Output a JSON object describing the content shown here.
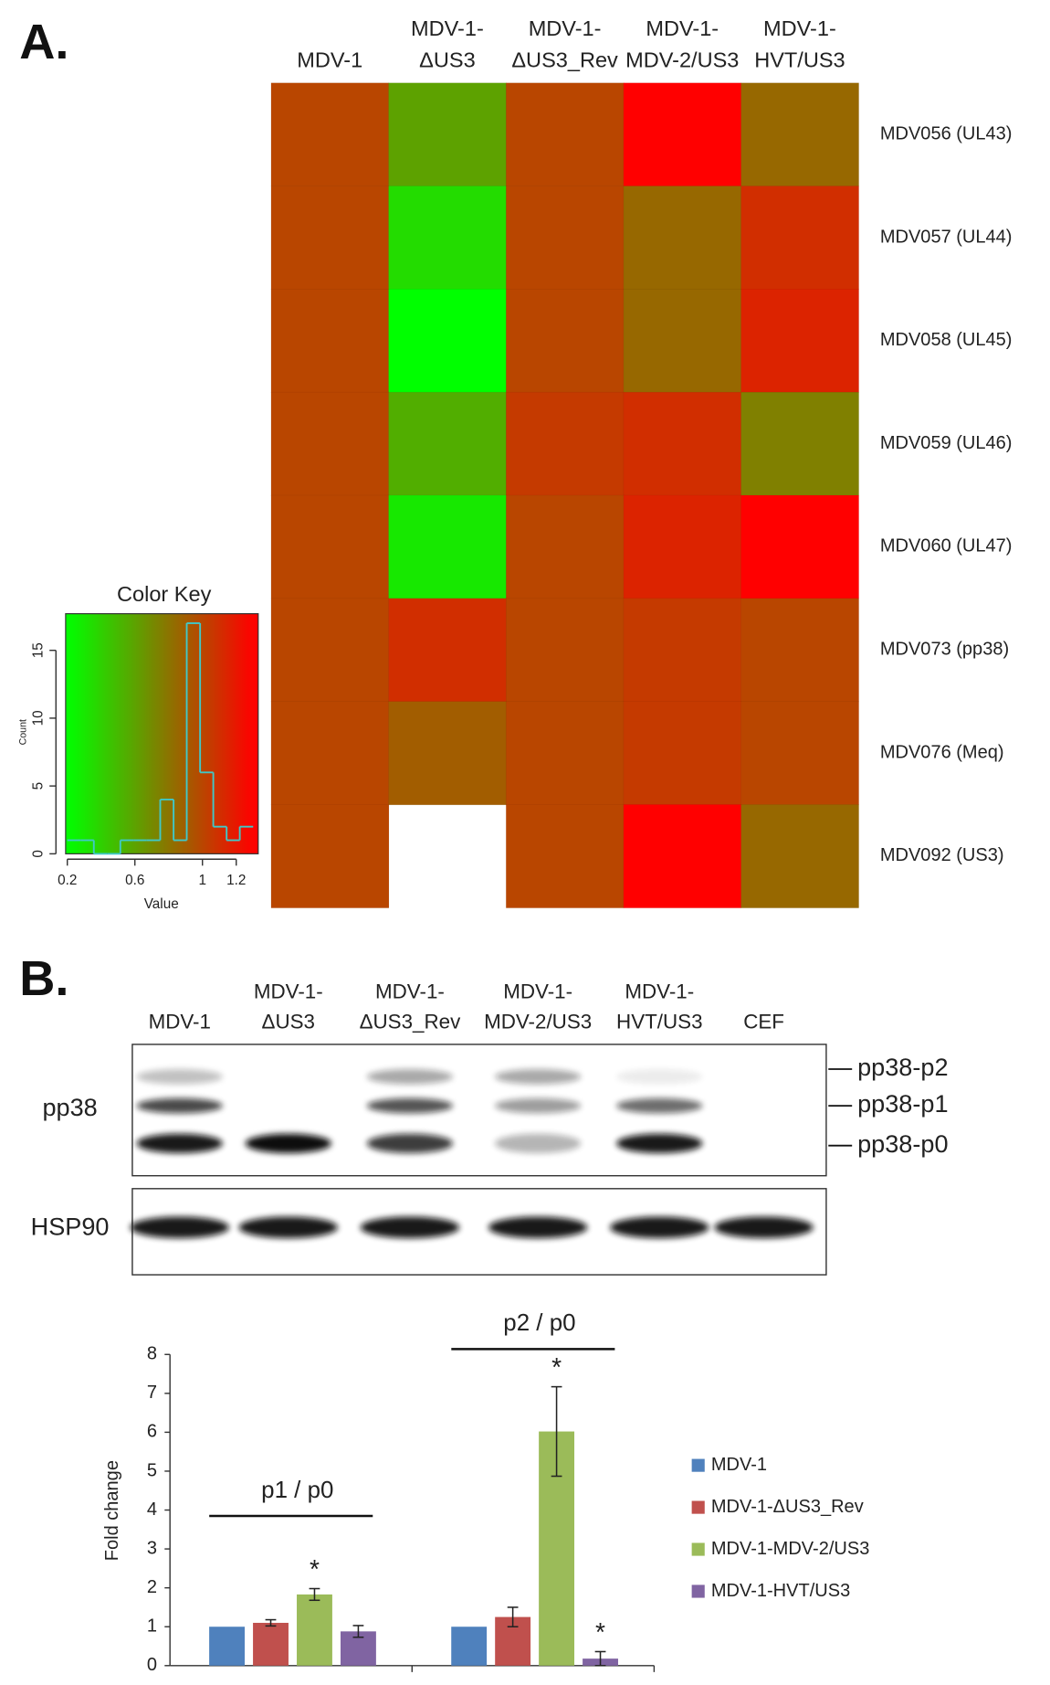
{
  "panel_labels": [
    "A.",
    "B."
  ],
  "chart_data": [
    {
      "type": "heatmap",
      "columns": [
        [
          "MDV-1"
        ],
        [
          "MDV-1-",
          "ΔUS3"
        ],
        [
          "MDV-1-",
          "ΔUS3_Rev"
        ],
        [
          "MDV-1-",
          "MDV-2/US3"
        ],
        [
          "MDV-1-",
          "HVT/US3"
        ]
      ],
      "rows": [
        "MDV056 (UL43)",
        "MDV057 (UL44)",
        "MDV058 (UL45)",
        "MDV059 (UL46)",
        "MDV060 (UL47)",
        "MDV073 (pp38)",
        "MDV076 (Meq)",
        "MDV092 (US3)"
      ],
      "values": [
        [
          1,
          0.6,
          1,
          1.3,
          0.85
        ],
        [
          1,
          0.35,
          1,
          0.85,
          1.1
        ],
        [
          1,
          0.2,
          1,
          0.85,
          1.15
        ],
        [
          1,
          0.55,
          1.05,
          1.1,
          0.75
        ],
        [
          1,
          0.3,
          1,
          1.15,
          1.3
        ],
        [
          1,
          1.1,
          1,
          1.05,
          1
        ],
        [
          1,
          0.9,
          1,
          1.05,
          1
        ],
        [
          1,
          null,
          1,
          1.3,
          0.85
        ]
      ],
      "color_low": "#00ff00",
      "color_high": "#ff0000",
      "color_range": [
        0.2,
        1.3
      ]
    },
    {
      "type": "histogram",
      "title": "Color Key",
      "x_label": "Value",
      "y_label": "Count",
      "bins": [
        0.2,
        0.279,
        0.357,
        0.436,
        0.514,
        0.593,
        0.671,
        0.75,
        0.829,
        0.907,
        0.986,
        1.064,
        1.143,
        1.221,
        1.3
      ],
      "counts": [
        1,
        1,
        0,
        0,
        1,
        1,
        1,
        4,
        1,
        17,
        6,
        2,
        1,
        2
      ],
      "color": "#40c8c8",
      "xlim": [
        0.19,
        1.33
      ],
      "ylim": [
        0,
        17.7
      ],
      "xticks": [
        0.2,
        0.6,
        1,
        1.2
      ],
      "yticks": [
        0,
        5,
        10,
        15
      ]
    },
    {
      "type": "bar",
      "y_label": "Fold change",
      "categories": [
        "p1 / p0",
        "p2 / p0"
      ],
      "series": [
        {
          "name": "MDV-1",
          "color": "#4f81bd",
          "values": [
            1,
            1
          ],
          "errors": [
            0,
            0
          ],
          "significance": [
            null,
            null
          ]
        },
        {
          "name": "MDV-1-ΔUS3_Rev",
          "color": "#c0504d",
          "values": [
            1.1,
            1.25
          ],
          "errors": [
            0.08,
            0.25
          ],
          "significance": [
            null,
            null
          ]
        },
        {
          "name": "MDV-1-MDV-2/US3",
          "color": "#9bbb59",
          "values": [
            1.83,
            6.02
          ],
          "errors": [
            0.15,
            1.15
          ],
          "significance": [
            "*",
            "*"
          ]
        },
        {
          "name": "MDV-1-HVT/US3",
          "color": "#8064a2",
          "values": [
            0.88,
            0.18
          ],
          "errors": [
            0.15,
            0.18
          ],
          "significance": [
            null,
            "*"
          ]
        }
      ],
      "ylim": [
        0,
        8
      ],
      "yticks": [
        0,
        1,
        2,
        3,
        4,
        5,
        6,
        7,
        8
      ],
      "legend": "right"
    }
  ],
  "blot": {
    "lanes": [
      [
        "MDV-1"
      ],
      [
        "MDV-1-",
        "ΔUS3"
      ],
      [
        "MDV-1-",
        "ΔUS3_Rev"
      ],
      [
        "MDV-1-",
        "MDV-2/US3"
      ],
      [
        "MDV-1-",
        "HVT/US3"
      ],
      [
        "CEF"
      ]
    ],
    "rows": [
      "pp38",
      "HSP90"
    ],
    "bands": [
      "pp38-p2",
      "pp38-p1",
      "pp38-p0"
    ]
  }
}
